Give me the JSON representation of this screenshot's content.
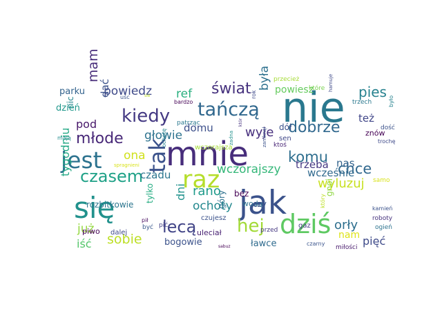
{
  "words": [
    {
      "id": "nie",
      "text": "nie",
      "color": "#2a788e"
    },
    {
      "id": "mnie",
      "text": "mnie",
      "color": "#472d7b"
    },
    {
      "id": "jak",
      "text": "jak",
      "color": "#3b528b"
    },
    {
      "id": "sie",
      "text": "się",
      "color": "#21918c"
    },
    {
      "id": "dzis",
      "text": "dziś",
      "color": "#5ec962"
    },
    {
      "id": "raz",
      "text": "raz",
      "color": "#b5de2b"
    },
    {
      "id": "jest",
      "text": "jest",
      "color": "#2c728e"
    },
    {
      "id": "tak",
      "text": "tak",
      "color": "#3b528b"
    },
    {
      "id": "hej",
      "text": "hej",
      "color": "#a2da37"
    },
    {
      "id": "tancza",
      "text": "tańczą",
      "color": "#31688e"
    },
    {
      "id": "czasem",
      "text": "czasem",
      "color": "#1fa187"
    },
    {
      "id": "kiedy",
      "text": "kiedy",
      "color": "#443983"
    },
    {
      "id": "dobrze",
      "text": "dobrze",
      "color": "#31688e"
    },
    {
      "id": "komu",
      "text": "komu",
      "color": "#2e6e8e"
    },
    {
      "id": "lecą",
      "text": "lecą",
      "color": "#414487"
    },
    {
      "id": "mlode",
      "text": "młode",
      "color": "#482878"
    },
    {
      "id": "chce",
      "text": "chce",
      "color": "#31688e"
    },
    {
      "id": "spac",
      "text": "spać",
      "color": "#8fd744"
    },
    {
      "id": "swiat",
      "text": "świat",
      "color": "#46327e"
    },
    {
      "id": "wczorajszy",
      "text": "wczorajszy",
      "color": "#35b779"
    },
    {
      "id": "wyluzuj",
      "text": "wyluzuj",
      "color": "#c8e020"
    },
    {
      "id": "sobie",
      "text": "sobie",
      "color": "#bddf26"
    },
    {
      "id": "orly",
      "text": "orły",
      "color": "#2e6f8e"
    },
    {
      "id": "powiedz",
      "text": "powiedz",
      "color": "#3e4989"
    },
    {
      "id": "ona",
      "text": "ona",
      "color": "#d0e11c"
    },
    {
      "id": "rano",
      "text": "rano",
      "color": "#1f9a8a"
    },
    {
      "id": "ochoty",
      "text": "ochoty",
      "color": "#23888e"
    },
    {
      "id": "pies",
      "text": "pies",
      "color": "#26818e"
    },
    {
      "id": "glowie",
      "text": "głowie",
      "color": "#2c728e"
    },
    {
      "id": "trzeba",
      "text": "trzeba",
      "color": "#453882"
    },
    {
      "id": "mam",
      "text": "mam",
      "color": "#472c7a"
    },
    {
      "id": "pod",
      "text": "pod",
      "color": "#48186a"
    },
    {
      "id": "byla",
      "text": "była",
      "color": "#2d708e"
    },
    {
      "id": "wyje",
      "text": "wyje",
      "color": "#472f7d"
    },
    {
      "id": "domu",
      "text": "domu",
      "color": "#3c4f8a"
    },
    {
      "id": "ref",
      "text": "ref",
      "color": "#29af7f"
    },
    {
      "id": "nas",
      "text": "nas",
      "color": "#33638d"
    },
    {
      "id": "wczesnie",
      "text": "wcześnie",
      "color": "#30698e"
    },
    {
      "id": "juz",
      "text": "już",
      "color": "#95d840"
    },
    {
      "id": "tygodniu",
      "text": "tygodniu",
      "color": "#22a884"
    },
    {
      "id": "czadu",
      "text": "czadu",
      "color": "#2a768e"
    },
    {
      "id": "piec",
      "text": "pięć",
      "color": "#3e4a89"
    },
    {
      "id": "dni",
      "text": "dni",
      "color": "#20928c"
    },
    {
      "id": "nam",
      "text": "nam",
      "color": "#dde318"
    },
    {
      "id": "tez",
      "text": "też",
      "color": "#404688"
    },
    {
      "id": "dac",
      "text": "dać",
      "color": "#3b528b"
    },
    {
      "id": "isc",
      "text": "iść",
      "color": "#52c569"
    },
    {
      "id": "powiesz",
      "text": "powiesz",
      "color": "#65cb5e"
    },
    {
      "id": "bogowie",
      "text": "bogowie",
      "color": "#3b528b"
    },
    {
      "id": "lawce",
      "text": "ławce",
      "color": "#2f6b8e"
    },
    {
      "id": "woda",
      "text": "wodą",
      "color": "#2d718e"
    },
    {
      "id": "nic",
      "text": "nic",
      "color": "#24868e"
    },
    {
      "id": "dzien",
      "text": "dzień",
      "color": "#1f978b"
    },
    {
      "id": "parku",
      "text": "parku",
      "color": "#33638d"
    },
    {
      "id": "rozbitkowie",
      "text": "rozbitkowie",
      "color": "#2b758e"
    },
    {
      "id": "tylko",
      "text": "tylko",
      "color": "#25ac82"
    },
    {
      "id": "dol",
      "text": "dół",
      "color": "#3b518b"
    },
    {
      "id": "znow",
      "text": "znów",
      "color": "#440154"
    },
    {
      "id": "bez",
      "text": "bez",
      "color": "#440154"
    },
    {
      "id": "gory",
      "text": "góry",
      "color": "#2d708e"
    },
    {
      "id": "czy",
      "text": "czy",
      "color": "#3a538b"
    },
    {
      "id": "gnoi",
      "text": "gnoi",
      "color": "#8fd744"
    },
    {
      "id": "ulecial",
      "text": "uleciał",
      "color": "#482173"
    },
    {
      "id": "piwo",
      "text": "piwo",
      "color": "#440154"
    },
    {
      "id": "dalej",
      "text": "dalej",
      "color": "#3e4989"
    },
    {
      "id": "gaz",
      "text": "gaz",
      "color": "#443a83"
    },
    {
      "id": "sen",
      "text": "sen",
      "color": "#3f4788"
    },
    {
      "id": "czujesz",
      "text": "czujesz",
      "color": "#3b528b"
    },
    {
      "id": "wczorajsza",
      "text": "wczorajsza",
      "color": "#a5db36"
    },
    {
      "id": "patrzac",
      "text": "patrząc",
      "color": "#2a788e"
    },
    {
      "id": "ktos",
      "text": "ktoś",
      "color": "#482475"
    },
    {
      "id": "kamien",
      "text": "kamień",
      "color": "#3b528b"
    },
    {
      "id": "roboty",
      "text": "roboty",
      "color": "#46327e"
    },
    {
      "id": "ogien",
      "text": "ogień",
      "color": "#2c728e"
    },
    {
      "id": "milosci",
      "text": "miłości",
      "color": "#481a6c"
    },
    {
      "id": "czarny",
      "text": "czarny",
      "color": "#3a548c"
    },
    {
      "id": "przed",
      "text": "przed",
      "color": "#453781"
    },
    {
      "id": "byc",
      "text": "być",
      "color": "#38588c"
    },
    {
      "id": "pic",
      "text": "pić",
      "color": "#424086"
    },
    {
      "id": "pil",
      "text": "pił",
      "color": "#470e61"
    },
    {
      "id": "samo",
      "text": "samo",
      "color": "#d8e219"
    },
    {
      "id": "trzech",
      "text": "trzech",
      "color": "#2a788e"
    },
    {
      "id": "dosc",
      "text": "dość",
      "color": "#3b528b"
    },
    {
      "id": "troche",
      "text": "trochę",
      "color": "#3e4989"
    },
    {
      "id": "bylo",
      "text": "było",
      "color": "#26828e"
    },
    {
      "id": "przeciez",
      "text": "przecież",
      "color": "#a5db36"
    },
    {
      "id": "ktore",
      "text": "które",
      "color": "#7ad151"
    },
    {
      "id": "usc",
      "text": "uśc",
      "color": "#3b528b"
    },
    {
      "id": "bardzo",
      "text": "bardzo",
      "color": "#440154"
    },
    {
      "id": "sie2",
      "text": "sie",
      "color": "#bddf26"
    },
    {
      "id": "rok",
      "text": "rok",
      "color": "#3e4989"
    },
    {
      "id": "zamknal",
      "text": "zamknął",
      "color": "#3b528b"
    },
    {
      "id": "zadna",
      "text": "żadna",
      "color": "#21918c"
    },
    {
      "id": "ktory",
      "text": "który",
      "color": "#bddf26"
    },
    {
      "id": "maja",
      "text": "mają",
      "color": "#228c8d"
    },
    {
      "id": "spragnieni",
      "text": "spragnieni",
      "color": "#d8e219"
    },
    {
      "id": "ochote",
      "text": "ochotę",
      "color": "#26828e"
    },
    {
      "id": "hamuje",
      "text": "hamuje",
      "color": "#3e4989"
    },
    {
      "id": "kotory",
      "text": "któr",
      "color": "#46327e"
    },
    {
      "id": "sabuz",
      "text": "sabuz",
      "color": "#440154"
    }
  ]
}
